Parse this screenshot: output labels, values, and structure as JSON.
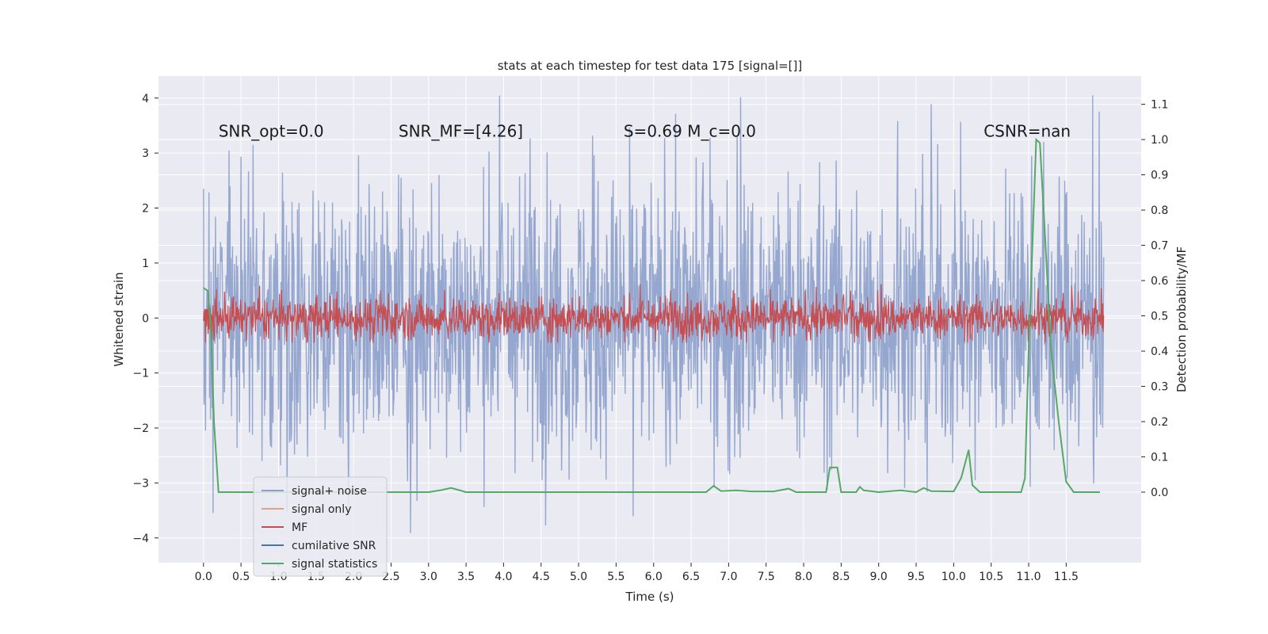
{
  "chart_data": {
    "type": "line",
    "title": "stats at each timestep for test data 175 [signal=[]]",
    "xlabel": "Time (s)",
    "ylabel": "Whitened strain",
    "ylabel_right": "Detection probability/MF",
    "xlim": [
      -0.6,
      12.5
    ],
    "ylim": [
      -4.45,
      4.4
    ],
    "ylim_right": [
      -0.2,
      1.18
    ],
    "x_ticks": [
      0.0,
      0.5,
      1.0,
      1.5,
      2.0,
      2.5,
      3.0,
      3.5,
      4.0,
      4.5,
      5.0,
      5.5,
      6.0,
      6.5,
      7.0,
      7.5,
      8.0,
      8.5,
      9.0,
      9.5,
      10.0,
      10.5,
      11.0,
      11.5
    ],
    "x_tick_labels": [
      "0.0",
      "0.5",
      "1.0",
      "1.5",
      "2.0",
      "2.5",
      "3.0",
      "3.5",
      "4.0",
      "4.5",
      "5.0",
      "5.5",
      "6.0",
      "6.5",
      "7.0",
      "7.5",
      "8.0",
      "8.5",
      "9.0",
      "9.5",
      "10.0",
      "10.5",
      "11.0",
      "11.5"
    ],
    "y_ticks": [
      -4,
      -3,
      -2,
      -1,
      0,
      1,
      2,
      3,
      4
    ],
    "y_tick_labels": [
      "−4",
      "−3",
      "−2",
      "−1",
      "0",
      "1",
      "2",
      "3",
      "4"
    ],
    "y_ticks_right": [
      0.0,
      0.1,
      0.2,
      0.3,
      0.4,
      0.5,
      0.6,
      0.7,
      0.8,
      0.9,
      1.0,
      1.1
    ],
    "y_tick_labels_right": [
      "0.0",
      "0.1",
      "0.2",
      "0.3",
      "0.4",
      "0.5",
      "0.6",
      "0.7",
      "0.8",
      "0.9",
      "1.0",
      "1.1"
    ],
    "grid": true,
    "legend_position": "lower-left",
    "annotations": [
      {
        "text": "SNR_opt=0.0",
        "x": 0.2,
        "y": 3.3
      },
      {
        "text": "SNR_MF=[4.26]",
        "x": 2.6,
        "y": 3.3
      },
      {
        "text": "S=0.69   M_c=0.0",
        "x": 5.6,
        "y": 3.3
      },
      {
        "text": "CSNR=nan",
        "x": 10.4,
        "y": 3.3
      }
    ],
    "series": [
      {
        "name": "signal+ noise",
        "color": "#8da0cb",
        "kind": "noise",
        "x_range": [
          0.0,
          12.0
        ],
        "amplitude": 2.3,
        "max": 4.05,
        "min": -4.1
      },
      {
        "name": "signal only",
        "color": "#e1a283",
        "kind": "flat",
        "values": []
      },
      {
        "name": "MF",
        "color": "#c44e52",
        "kind": "noise",
        "x_range": [
          0.0,
          12.0
        ],
        "amplitude": 0.35,
        "max": 0.9,
        "min": -0.45
      },
      {
        "name": "cumilative SNR",
        "color": "#4c72b0",
        "kind": "flat",
        "values": []
      },
      {
        "name": "signal statistics",
        "color": "#55a868",
        "axis": "right",
        "x": [
          0.0,
          0.06,
          0.1,
          0.14,
          0.2,
          0.5,
          1.0,
          2.0,
          3.0,
          3.15,
          3.3,
          3.5,
          4.0,
          5.0,
          6.0,
          6.5,
          6.7,
          6.8,
          6.9,
          7.1,
          7.3,
          7.6,
          7.8,
          7.9,
          8.3,
          8.35,
          8.45,
          8.5,
          8.7,
          8.75,
          8.8,
          9.0,
          9.3,
          9.5,
          9.6,
          9.7,
          10.0,
          10.1,
          10.2,
          10.25,
          10.35,
          10.6,
          10.9,
          10.95,
          11.0,
          11.1,
          11.15,
          11.2,
          11.3,
          11.4,
          11.5,
          11.6,
          11.95
        ],
        "values": [
          0.58,
          0.57,
          0.45,
          0.2,
          0.0,
          0.0,
          0.0,
          0.0,
          0.0,
          0.005,
          0.012,
          0.0,
          0.0,
          0.0,
          0.0,
          0.0,
          0.0,
          0.018,
          0.003,
          0.005,
          0.002,
          0.002,
          0.01,
          0.0,
          0.0,
          0.07,
          0.07,
          0.0,
          0.0,
          0.015,
          0.005,
          0.0,
          0.005,
          0.0,
          0.012,
          0.003,
          0.002,
          0.04,
          0.12,
          0.02,
          0.0,
          0.0,
          0.0,
          0.04,
          0.4,
          1.0,
          0.99,
          0.8,
          0.4,
          0.2,
          0.03,
          0.0,
          0.0
        ]
      }
    ]
  }
}
